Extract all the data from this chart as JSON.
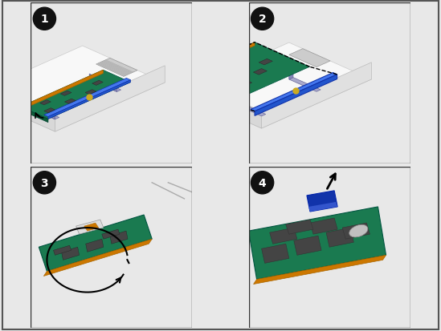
{
  "figure_width": 5.49,
  "figure_height": 4.14,
  "dpi": 100,
  "bg_color": "#e8e8e8",
  "panel_bg": "#ffffff",
  "border_color": "#000000",
  "green": "#1a7a50",
  "green_dark": "#0d5c38",
  "orange": "#cc7700",
  "blue_bar": "#2255cc",
  "blue_bar_top": "#4477ee",
  "purple": "#8888bb",
  "purple_light": "#aaaacc",
  "chip_dark": "#444444",
  "chip_mid": "#666666",
  "chip_light": "#888888",
  "gold": "#ccaa22",
  "nvram_blue": "#1133aa",
  "nvram_light": "#3355cc",
  "white": "#ffffff",
  "black": "#000000",
  "gray_light": "#cccccc",
  "gray_bg": "#f0f0f0",
  "chassis_line": "#aaaaaa",
  "chassis_fill": "#e0e0e0",
  "heatsink": "#bbbbbb"
}
